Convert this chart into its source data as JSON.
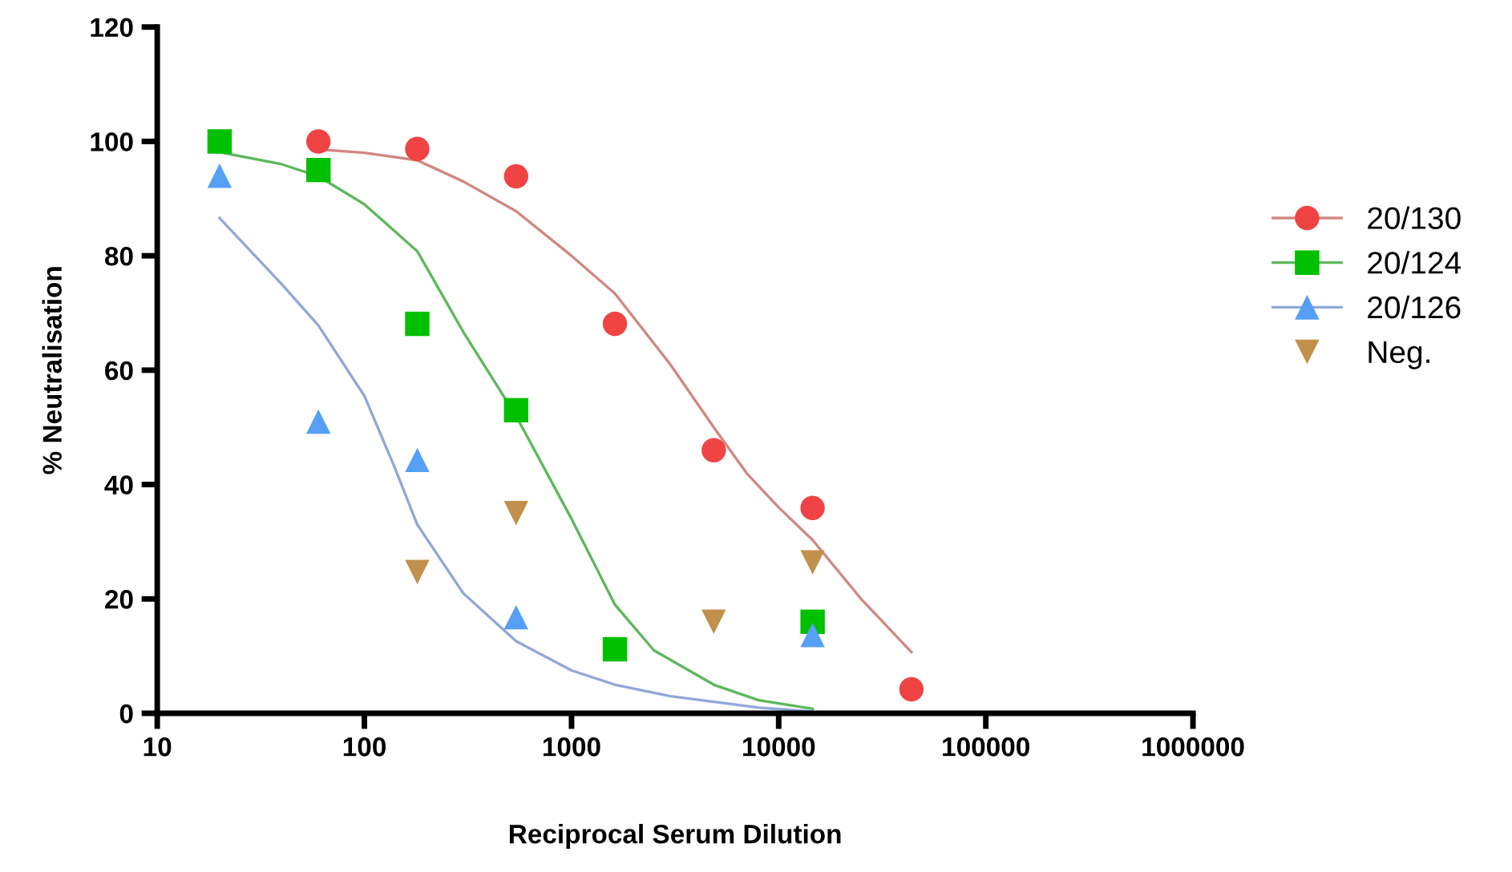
{
  "chart_data": {
    "type": "scatter",
    "xlabel": "Reciprocal Serum Dilution",
    "ylabel": "% Neutralisation",
    "log": "x",
    "xlim": [
      10,
      1000000
    ],
    "xticks": [
      10,
      100,
      1000,
      10000,
      100000,
      1000000
    ],
    "ylim": [
      0,
      120
    ],
    "yticks": [
      0,
      20,
      40,
      60,
      80,
      100,
      120
    ],
    "grid": false,
    "legend": "right",
    "series": [
      {
        "name": "20/130",
        "marker": "circle",
        "color": "#f04444",
        "x": [
          60,
          180,
          540,
          1620,
          4860,
          14580,
          43740
        ],
        "values": [
          100,
          98.7,
          93.9,
          68.1,
          46,
          35.9,
          4.2
        ]
      },
      {
        "type": "line",
        "color": "#d08880",
        "x": [
          60,
          100,
          180,
          300,
          540,
          1000,
          1620,
          3000,
          4860,
          7000,
          10000,
          14580,
          25000,
          43740
        ],
        "values": [
          98.6,
          98,
          96.7,
          93,
          87.8,
          80,
          73.4,
          61,
          50,
          42,
          36,
          30.3,
          20,
          10.7
        ]
      },
      {
        "name": "20/124",
        "marker": "square",
        "color": "#00c000",
        "x": [
          20,
          60,
          180,
          540,
          1620,
          14580
        ],
        "values": [
          100,
          95,
          68.1,
          53,
          11.2,
          16
        ]
      },
      {
        "type": "line",
        "color": "#5cb85c",
        "x": [
          20,
          40,
          60,
          100,
          180,
          300,
          540,
          1000,
          1620,
          2500,
          4860,
          8000,
          14580
        ],
        "values": [
          98.1,
          96,
          93.9,
          89,
          80.8,
          66.7,
          52,
          34,
          19,
          11,
          5,
          2.3,
          0.8
        ]
      },
      {
        "name": "20/126",
        "marker": "triangle",
        "color": "#55a0f5",
        "x": [
          20,
          60,
          180,
          540,
          14580
        ],
        "values": [
          94,
          51,
          44.3,
          16.8,
          13.7
        ]
      },
      {
        "type": "line",
        "color": "#90a8d8",
        "x": [
          20,
          40,
          60,
          100,
          140,
          180,
          300,
          540,
          1000,
          1620,
          3000,
          4860,
          8000,
          14580
        ],
        "values": [
          86.6,
          75,
          67.8,
          55.5,
          43,
          33,
          21,
          12.6,
          7.5,
          5,
          3,
          2,
          1,
          0.3
        ]
      },
      {
        "name": "Neg.",
        "marker": "triangle_down",
        "color": "#c0904c",
        "x": [
          180,
          540,
          4860,
          14580
        ],
        "values": [
          24.7,
          35,
          16,
          26.4
        ]
      }
    ]
  }
}
